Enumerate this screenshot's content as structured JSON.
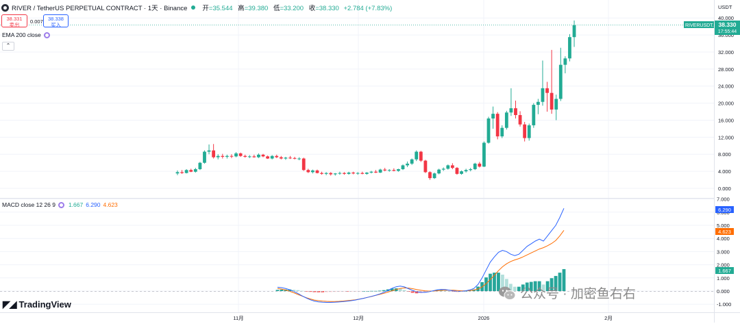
{
  "header": {
    "title": "RIVER / TetherUS PERPETUAL CONTRACT · 1天 · Binance",
    "open_label": "开",
    "open": "=35.544",
    "high_label": "高",
    "high": "=39.380",
    "low_label": "低",
    "low": "=33.200",
    "close_label": "收",
    "close": "=38.330",
    "change": "+2.784 (+7.83%)"
  },
  "trade": {
    "sell_price": "38.331",
    "sell_label": "卖出",
    "spread": "0.007",
    "buy_price": "38.338",
    "buy_label": "买入"
  },
  "indicators": {
    "ema_label": "EMA 200 close",
    "macd_label": "MACD close 12 26 9",
    "macd_value": "1.667",
    "macd_signal": "6.290",
    "macd_line": "4.623"
  },
  "price_axis": {
    "currency": "USDT",
    "ticks": [
      0,
      4,
      8,
      12,
      16,
      20,
      24,
      28,
      32,
      36,
      40
    ],
    "tick_labels": [
      "0.000",
      "4.000",
      "8.000",
      "12.000",
      "16.000",
      "20.000",
      "24.000",
      "28.000",
      "32.000",
      "36.000",
      "40.000"
    ],
    "symbol_tag": "RIVERUSDT.P",
    "last_price": "38.330",
    "countdown": "17:55:44"
  },
  "macd_axis": {
    "ticks": [
      -1,
      0,
      1,
      2,
      3,
      4,
      5,
      6,
      7
    ],
    "tick_labels": [
      "-1.000",
      "0.000",
      "1.000",
      "2.000",
      "3.000",
      "4.000",
      "5.000",
      "6.000",
      "7.000"
    ],
    "badges": [
      "6.290",
      "4.623",
      "1.667"
    ]
  },
  "time_axis": {
    "labels": [
      "11月",
      "12月",
      "2026",
      "2月"
    ]
  },
  "watermark": {
    "brand": "TradingView",
    "wechat": "公众号 · 加密鱼右右"
  },
  "colors": {
    "up": "#22ab94",
    "down": "#f23645",
    "macd": "#2962ff",
    "signal": "#ff6d00",
    "grid": "#f0f3fa"
  },
  "chart_data": {
    "type": "candlestick",
    "ylim": [
      0,
      40
    ],
    "candles": [
      [
        3.5,
        4.2,
        3.1,
        3.8
      ],
      [
        3.8,
        4.3,
        3.4,
        3.6
      ],
      [
        3.6,
        4.5,
        3.5,
        4.3
      ],
      [
        4.3,
        4.6,
        3.8,
        3.9
      ],
      [
        3.9,
        4.8,
        3.7,
        4.5
      ],
      [
        4.5,
        6.2,
        4.3,
        6.0
      ],
      [
        6.0,
        8.9,
        5.8,
        8.6
      ],
      [
        8.6,
        10.3,
        8.0,
        8.9
      ],
      [
        8.9,
        10.4,
        7.0,
        7.3
      ],
      [
        7.3,
        8.0,
        6.8,
        7.6
      ],
      [
        7.6,
        8.1,
        7.0,
        7.4
      ],
      [
        7.4,
        7.9,
        7.0,
        7.6
      ],
      [
        7.6,
        8.0,
        7.1,
        7.5
      ],
      [
        7.5,
        8.5,
        7.3,
        8.2
      ],
      [
        8.2,
        8.4,
        7.4,
        7.6
      ],
      [
        7.6,
        7.9,
        7.2,
        7.4
      ],
      [
        7.4,
        7.8,
        7.1,
        7.5
      ],
      [
        7.5,
        7.9,
        7.2,
        7.3
      ],
      [
        7.3,
        8.2,
        7.1,
        7.9
      ],
      [
        7.9,
        8.1,
        7.3,
        7.5
      ],
      [
        7.5,
        7.7,
        6.9,
        7.0
      ],
      [
        7.0,
        7.8,
        6.8,
        7.6
      ],
      [
        7.6,
        7.9,
        7.1,
        7.3
      ],
      [
        7.3,
        7.6,
        6.8,
        7.0
      ],
      [
        7.0,
        7.4,
        6.7,
        7.2
      ],
      [
        7.2,
        7.6,
        6.9,
        7.1
      ],
      [
        7.1,
        7.4,
        6.8,
        7.0
      ],
      [
        7.0,
        7.3,
        6.6,
        7.0
      ],
      [
        7.0,
        7.2,
        4.1,
        4.3
      ],
      [
        4.3,
        4.6,
        3.6,
        3.8
      ],
      [
        3.8,
        4.4,
        3.5,
        4.2
      ],
      [
        4.2,
        4.4,
        3.5,
        3.6
      ],
      [
        3.6,
        3.9,
        3.2,
        3.4
      ],
      [
        3.4,
        3.8,
        3.1,
        3.6
      ],
      [
        3.6,
        3.8,
        3.0,
        3.3
      ],
      [
        3.3,
        3.6,
        3.0,
        3.5
      ],
      [
        3.5,
        3.9,
        3.2,
        3.6
      ],
      [
        3.6,
        3.8,
        3.2,
        3.4
      ],
      [
        3.4,
        3.9,
        3.2,
        3.7
      ],
      [
        3.7,
        3.9,
        3.3,
        3.5
      ],
      [
        3.5,
        3.8,
        3.2,
        3.6
      ],
      [
        3.6,
        3.9,
        3.3,
        3.4
      ],
      [
        3.4,
        3.8,
        3.2,
        3.7
      ],
      [
        3.7,
        4.1,
        3.5,
        3.9
      ],
      [
        3.9,
        4.3,
        3.6,
        3.7
      ],
      [
        3.7,
        4.6,
        3.6,
        4.4
      ],
      [
        4.4,
        4.8,
        4.0,
        4.2
      ],
      [
        4.2,
        4.5,
        3.9,
        4.3
      ],
      [
        4.3,
        4.7,
        4.0,
        4.1
      ],
      [
        4.1,
        4.6,
        3.9,
        4.5
      ],
      [
        4.5,
        5.6,
        4.3,
        5.4
      ],
      [
        5.4,
        6.3,
        5.0,
        5.8
      ],
      [
        5.8,
        7.0,
        5.5,
        6.8
      ],
      [
        6.8,
        8.9,
        6.4,
        8.6
      ],
      [
        8.6,
        8.8,
        6.2,
        6.5
      ],
      [
        6.5,
        6.7,
        3.6,
        3.8
      ],
      [
        3.8,
        4.0,
        2.0,
        2.4
      ],
      [
        2.4,
        3.7,
        2.2,
        3.5
      ],
      [
        3.5,
        4.6,
        3.3,
        4.4
      ],
      [
        4.4,
        4.9,
        4.1,
        4.6
      ],
      [
        4.6,
        5.6,
        4.4,
        5.4
      ],
      [
        5.4,
        5.9,
        4.5,
        4.8
      ],
      [
        4.8,
        5.0,
        3.2,
        3.4
      ],
      [
        3.4,
        4.2,
        3.2,
        4.0
      ],
      [
        4.0,
        4.6,
        3.7,
        4.3
      ],
      [
        4.3,
        4.8,
        4.0,
        4.5
      ],
      [
        4.5,
        6.0,
        4.3,
        5.8
      ],
      [
        5.8,
        6.2,
        4.9,
        5.1
      ],
      [
        5.1,
        11.0,
        5.0,
        10.7
      ],
      [
        10.7,
        16.8,
        10.5,
        16.4
      ],
      [
        16.4,
        19.2,
        14.0,
        17.5
      ],
      [
        17.5,
        17.9,
        11.5,
        12.2
      ],
      [
        12.2,
        14.8,
        11.8,
        14.2
      ],
      [
        14.2,
        18.2,
        13.8,
        17.8
      ],
      [
        17.8,
        23.5,
        17.0,
        18.8
      ],
      [
        18.8,
        20.6,
        16.4,
        17.2
      ],
      [
        17.2,
        18.1,
        14.5,
        15.0
      ],
      [
        15.0,
        15.6,
        11.0,
        11.8
      ],
      [
        11.8,
        15.2,
        11.2,
        14.8
      ],
      [
        14.8,
        20.0,
        14.2,
        19.6
      ],
      [
        19.6,
        21.0,
        17.4,
        20.3
      ],
      [
        20.3,
        30.0,
        19.4,
        23.5
      ],
      [
        23.5,
        25.0,
        18.0,
        22.4
      ],
      [
        22.4,
        32.5,
        17.5,
        18.5
      ],
      [
        18.5,
        22.0,
        16.0,
        21.0
      ],
      [
        21.0,
        33.0,
        20.5,
        29.0
      ],
      [
        29.0,
        31.0,
        27.0,
        30.5
      ],
      [
        30.5,
        36.2,
        29.8,
        35.5
      ],
      [
        35.5,
        39.4,
        33.2,
        38.3
      ]
    ],
    "macd": {
      "macd": [
        0.29,
        0.26,
        0.2,
        0.1,
        -0.03,
        -0.19,
        -0.36,
        -0.52,
        -0.66,
        -0.76,
        -0.82,
        -0.85,
        -0.86,
        -0.86,
        -0.85,
        -0.83,
        -0.8,
        -0.77,
        -0.73,
        -0.68,
        -0.62,
        -0.55,
        -0.48,
        -0.4,
        -0.32,
        -0.22,
        -0.1,
        0.05,
        0.21,
        0.33,
        0.38,
        0.32,
        0.18,
        0.05,
        -0.05,
        -0.1,
        -0.1,
        -0.05,
        0.02,
        0.09,
        0.13,
        0.12,
        0.07,
        0.01,
        -0.02,
        -0.02,
        0.02,
        0.09,
        0.2,
        0.5,
        1.0,
        1.6,
        2.2,
        2.6,
        2.95,
        3.1,
        3.0,
        2.8,
        2.7,
        2.8,
        3.1,
        3.4,
        3.6,
        3.8,
        3.95,
        3.8,
        4.2,
        4.6,
        5.0,
        5.6,
        6.29
      ],
      "signal": [
        0.2,
        0.15,
        0.08,
        -0.02,
        -0.13,
        -0.26,
        -0.38,
        -0.5,
        -0.6,
        -0.68,
        -0.73,
        -0.76,
        -0.78,
        -0.79,
        -0.79,
        -0.78,
        -0.76,
        -0.73,
        -0.7,
        -0.66,
        -0.61,
        -0.55,
        -0.48,
        -0.41,
        -0.33,
        -0.25,
        -0.17,
        -0.08,
        0.02,
        0.12,
        0.2,
        0.24,
        0.23,
        0.18,
        0.12,
        0.06,
        0.02,
        0.0,
        0.0,
        0.02,
        0.05,
        0.07,
        0.07,
        0.06,
        0.04,
        0.02,
        0.02,
        0.04,
        0.08,
        0.16,
        0.32,
        0.56,
        0.88,
        1.2,
        1.55,
        1.85,
        2.08,
        2.25,
        2.37,
        2.47,
        2.6,
        2.75,
        2.9,
        3.05,
        3.2,
        3.3,
        3.45,
        3.62,
        3.85,
        4.2,
        4.62
      ],
      "hist": [
        0.09,
        0.11,
        0.12,
        0.12,
        0.1,
        0.07,
        0.02,
        -0.02,
        -0.06,
        -0.08,
        -0.09,
        -0.09,
        -0.08,
        -0.07,
        -0.06,
        -0.05,
        -0.04,
        -0.04,
        -0.03,
        -0.02,
        -0.01,
        0.0,
        0.0,
        0.01,
        0.01,
        0.03,
        0.07,
        0.13,
        0.19,
        0.21,
        0.18,
        0.08,
        -0.05,
        -0.13,
        -0.17,
        -0.16,
        -0.12,
        -0.05,
        0.02,
        0.07,
        0.08,
        0.05,
        0.0,
        -0.05,
        -0.06,
        -0.04,
        0.0,
        0.05,
        0.12,
        0.34,
        0.68,
        1.04,
        1.32,
        1.4,
        1.4,
        1.25,
        0.92,
        0.55,
        0.33,
        0.33,
        0.5,
        0.65,
        0.7,
        0.75,
        0.75,
        0.5,
        0.75,
        0.98,
        1.15,
        1.4,
        1.67
      ]
    },
    "xlabel": "",
    "ylabel": ""
  }
}
